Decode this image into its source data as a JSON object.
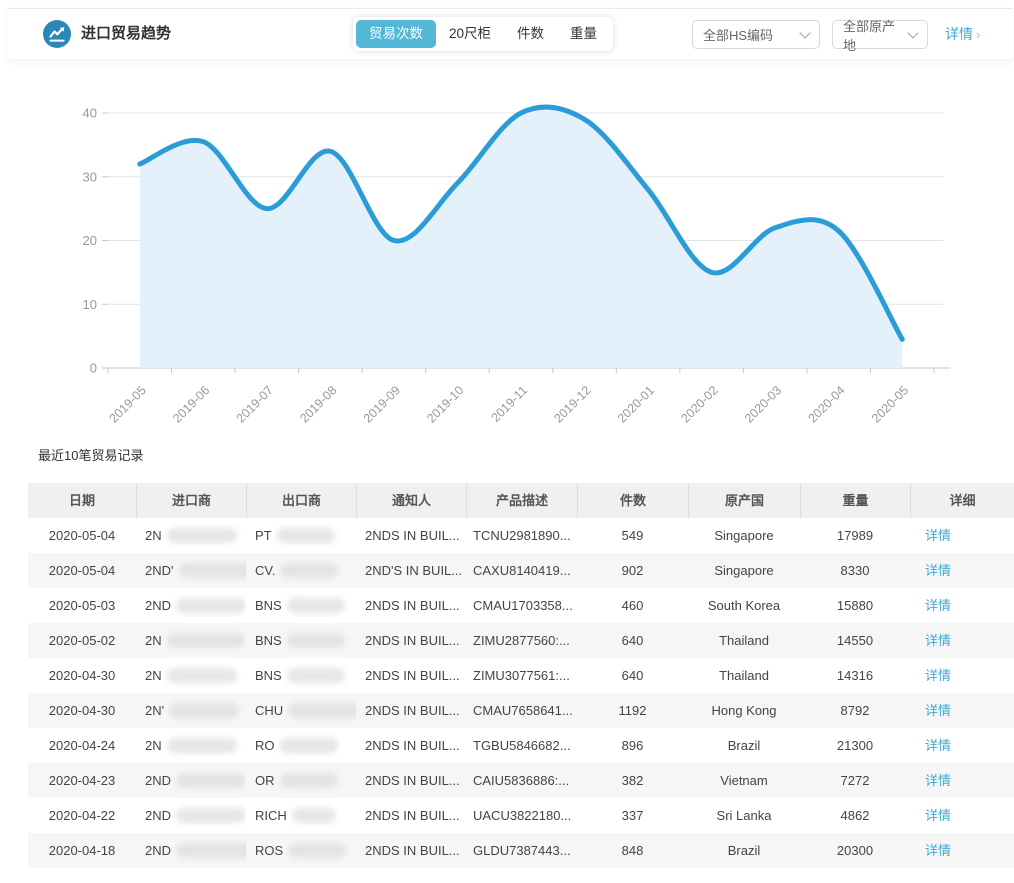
{
  "app": {
    "title": "进口贸易趋势",
    "tabs": [
      {
        "label": "贸易次数",
        "active": true
      },
      {
        "label": "20尺柜",
        "active": false
      },
      {
        "label": "件数",
        "active": false
      },
      {
        "label": "重量",
        "active": false
      }
    ],
    "filters": [
      {
        "value": "全部HS编码"
      },
      {
        "value": "全部原产地"
      }
    ],
    "detail_link": {
      "label": "详情",
      "arrow": "›"
    }
  },
  "colors": {
    "accent_line": "#2B9CD6",
    "area_fill": "#E4F1FA",
    "tab_active_bg": "#55B7D8",
    "link": "#3FA9D1",
    "grid_line": "#e4e4e4",
    "axis_line": "#c8c8c8",
    "axis_label": "#999999"
  },
  "chart_data": {
    "type": "area",
    "title": "",
    "xlabel": "",
    "ylabel": "",
    "categories": [
      "2019-05",
      "2019-06",
      "2019-07",
      "2019-08",
      "2019-09",
      "2019-10",
      "2019-11",
      "2019-12",
      "2020-01",
      "2020-02",
      "2020-03",
      "2020-04",
      "2020-05"
    ],
    "series": [
      {
        "name": "贸易次数",
        "values": [
          32,
          35.5,
          25,
          34,
          20,
          29,
          40,
          39,
          28,
          15,
          22,
          21.5,
          4.5
        ]
      }
    ],
    "ylim": [
      0,
      40
    ],
    "yticks": [
      0,
      10,
      20,
      30,
      40
    ],
    "grid": true,
    "legend": "none",
    "smooth": true,
    "x_label_rotation": 45
  },
  "table": {
    "title": "最近10笔贸易记录",
    "columns": [
      "日期",
      "进口商",
      "出口商",
      "通知人",
      "产品描述",
      "件数",
      "原产国",
      "重量",
      "详细"
    ],
    "rows": [
      {
        "date": "2020-05-04",
        "importer": "2N",
        "exporter": "PT",
        "notify": "2NDS IN BUIL...",
        "product": "TCNU2981890...",
        "pieces": "549",
        "origin": "Singapore",
        "weight": "17989",
        "detail": "详情"
      },
      {
        "date": "2020-05-04",
        "importer": "2ND'",
        "exporter": "CV.",
        "notify": "2ND'S IN BUIL...",
        "product": "CAXU8140419...",
        "pieces": "902",
        "origin": "Singapore",
        "weight": "8330",
        "detail": "详情"
      },
      {
        "date": "2020-05-03",
        "importer": "2ND",
        "exporter": "BNS",
        "notify": "2NDS IN BUIL...",
        "product": "CMAU1703358...",
        "pieces": "460",
        "origin": "South Korea",
        "weight": "15880",
        "detail": "详情"
      },
      {
        "date": "2020-05-02",
        "importer": "2N",
        "exporter": "BNS",
        "notify": "2NDS IN BUIL...",
        "product": "ZIMU2877560:...",
        "pieces": "640",
        "origin": "Thailand",
        "weight": "14550",
        "detail": "详情"
      },
      {
        "date": "2020-04-30",
        "importer": "2N",
        "exporter": "BNS",
        "notify": "2NDS IN BUIL...",
        "product": "ZIMU3077561:...",
        "pieces": "640",
        "origin": "Thailand",
        "weight": "14316",
        "detail": "详情"
      },
      {
        "date": "2020-04-30",
        "importer": "2N'",
        "exporter": "CHU",
        "notify": "2NDS IN BUIL...",
        "product": "CMAU7658641...",
        "pieces": "1192",
        "origin": "Hong Kong",
        "weight": "8792",
        "detail": "详情"
      },
      {
        "date": "2020-04-24",
        "importer": "2N",
        "exporter": "RO",
        "notify": "2NDS IN BUIL...",
        "product": "TGBU5846682...",
        "pieces": "896",
        "origin": "Brazil",
        "weight": "21300",
        "detail": "详情"
      },
      {
        "date": "2020-04-23",
        "importer": "2ND",
        "exporter": "OR",
        "notify": "2NDS IN BUIL...",
        "product": "CAIU5836886:...",
        "pieces": "382",
        "origin": "Vietnam",
        "weight": "7272",
        "detail": "详情"
      },
      {
        "date": "2020-04-22",
        "importer": "2ND",
        "exporter": "RICH",
        "notify": "2NDS IN BUIL...",
        "product": "UACU3822180...",
        "pieces": "337",
        "origin": "Sri Lanka",
        "weight": "4862",
        "detail": "详情"
      },
      {
        "date": "2020-04-18",
        "importer": "2ND",
        "exporter": "ROS",
        "notify": "2NDS IN BUIL...",
        "product": "GLDU7387443...",
        "pieces": "848",
        "origin": "Brazil",
        "weight": "20300",
        "detail": "详情"
      }
    ]
  }
}
